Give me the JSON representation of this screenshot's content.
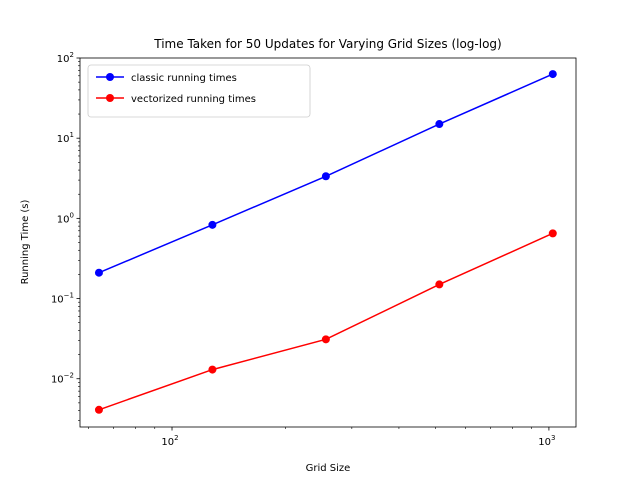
{
  "chart_data": {
    "type": "line",
    "title": "Time Taken for 50 Updates for Varying Grid Sizes (log-log)",
    "xlabel": "Grid Size",
    "ylabel": "Running Time (s)",
    "xscale": "log",
    "yscale": "log",
    "xlim": [
      57,
      1180
    ],
    "ylim": [
      0.0025,
      100
    ],
    "x": [
      64,
      128,
      256,
      512,
      1024
    ],
    "xticks": [
      {
        "value": 100,
        "base": "10",
        "exp": "2"
      },
      {
        "value": 1000,
        "base": "10",
        "exp": "3"
      }
    ],
    "yticks": [
      {
        "value": 0.01,
        "base": "10",
        "exp": "−2"
      },
      {
        "value": 0.1,
        "base": "10",
        "exp": "−1"
      },
      {
        "value": 1,
        "base": "10",
        "exp": "0"
      },
      {
        "value": 10,
        "base": "10",
        "exp": "1"
      },
      {
        "value": 100,
        "base": "10",
        "exp": "2"
      }
    ],
    "series": [
      {
        "name": "classic running times",
        "color": "#0000ff",
        "values": [
          0.21,
          0.83,
          3.35,
          15.0,
          63.0
        ]
      },
      {
        "name": "vectorized running times",
        "color": "#ff0000",
        "values": [
          0.0041,
          0.013,
          0.031,
          0.15,
          0.65
        ]
      }
    ],
    "legend": "top-left",
    "grid": false
  }
}
